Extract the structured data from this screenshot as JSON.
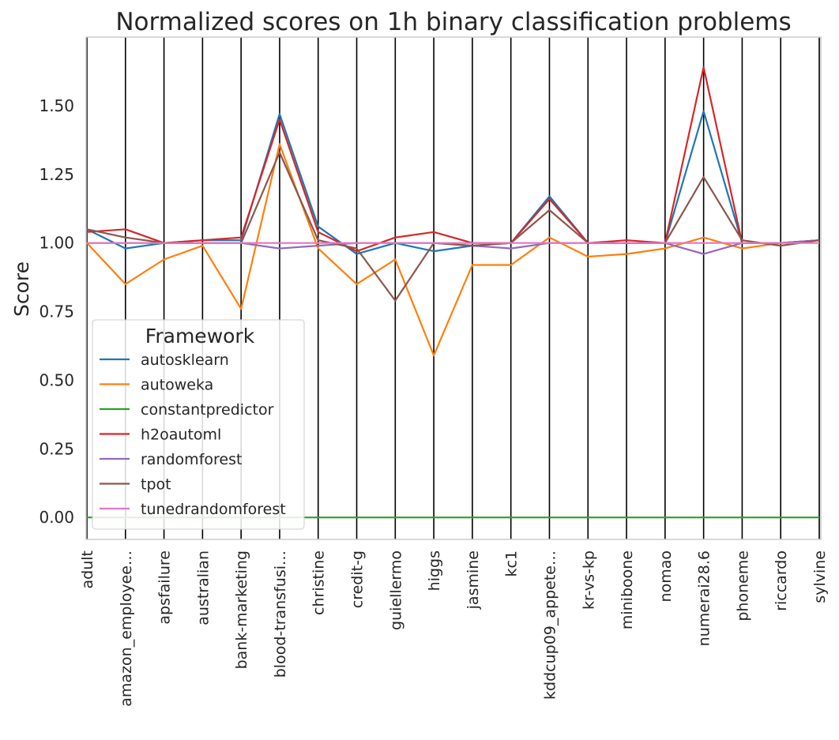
{
  "chart_data": {
    "type": "line",
    "title": "Normalized scores on 1h binary classification problems",
    "xlabel": "",
    "ylabel": "Score",
    "ylim": [
      -0.08,
      1.75
    ],
    "yticks": [
      0.0,
      0.25,
      0.5,
      0.75,
      1.0,
      1.25,
      1.5
    ],
    "ytick_labels": [
      "0.00",
      "0.25",
      "0.50",
      "0.75",
      "1.00",
      "1.25",
      "1.50"
    ],
    "grid": "vertical lines at each category",
    "categories": [
      "adult",
      "amazon_employee…",
      "apsfailure",
      "australian",
      "bank-marketing",
      "blood-transfusi…",
      "christine",
      "credit-g",
      "guiellermo",
      "higgs",
      "jasmine",
      "kc1",
      "kddcup09_appete…",
      "kr-vs-kp",
      "miniboone",
      "nomao",
      "numerai28.6",
      "phoneme",
      "riccardo",
      "sylvine"
    ],
    "legend": {
      "title": "Framework",
      "placement": "lower-left"
    },
    "series": [
      {
        "name": "autosklearn",
        "color": "#1f77b4",
        "values": [
          1.05,
          0.98,
          1.0,
          1.01,
          1.01,
          1.47,
          1.06,
          0.96,
          1.0,
          0.97,
          0.99,
          1.0,
          1.17,
          1.0,
          1.0,
          1.0,
          1.48,
          1.0,
          1.0,
          1.01
        ]
      },
      {
        "name": "autoweka",
        "color": "#ff7f0e",
        "values": [
          1.0,
          0.85,
          0.94,
          0.99,
          0.76,
          1.36,
          0.98,
          0.85,
          0.94,
          0.59,
          0.92,
          0.92,
          1.02,
          0.95,
          0.96,
          0.98,
          1.02,
          0.98,
          1.0,
          1.01
        ]
      },
      {
        "name": "constantpredictor",
        "color": "#2ca02c",
        "values": [
          0.0,
          0.0,
          0.0,
          0.0,
          0.0,
          0.0,
          0.0,
          0.0,
          0.0,
          0.0,
          0.0,
          0.0,
          0.0,
          0.0,
          0.0,
          0.0,
          0.0,
          0.0,
          0.0,
          0.0
        ]
      },
      {
        "name": "h2oautoml",
        "color": "#d62728",
        "values": [
          1.04,
          1.05,
          1.0,
          1.01,
          1.02,
          1.45,
          1.04,
          0.97,
          1.02,
          1.04,
          1.0,
          1.0,
          1.16,
          1.0,
          1.01,
          1.0,
          1.64,
          1.0,
          1.0,
          1.01
        ]
      },
      {
        "name": "randomforest",
        "color": "#9467bd",
        "values": [
          1.0,
          1.0,
          1.0,
          1.0,
          1.0,
          0.98,
          0.99,
          1.0,
          1.0,
          1.0,
          0.99,
          0.98,
          1.0,
          1.0,
          1.0,
          1.0,
          0.96,
          1.0,
          1.0,
          1.01
        ]
      },
      {
        "name": "tpot",
        "color": "#8c564b",
        "values": [
          1.05,
          1.02,
          1.0,
          1.0,
          1.0,
          1.33,
          1.01,
          0.98,
          0.79,
          1.0,
          0.99,
          1.0,
          1.12,
          1.0,
          1.0,
          1.0,
          1.24,
          1.01,
          0.99,
          1.01
        ]
      },
      {
        "name": "tunedrandomforest",
        "color": "#e377c2",
        "values": [
          1.0,
          1.0,
          1.0,
          1.0,
          1.0,
          1.0,
          1.0,
          1.0,
          1.0,
          1.0,
          1.0,
          1.0,
          1.0,
          1.0,
          1.0,
          1.0,
          1.0,
          1.0,
          1.0,
          1.0
        ]
      }
    ]
  }
}
